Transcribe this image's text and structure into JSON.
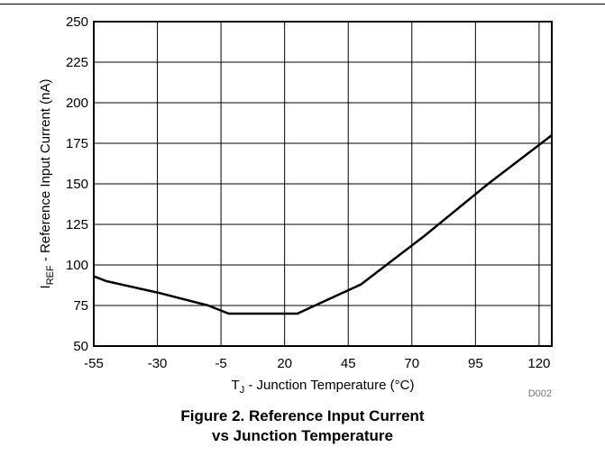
{
  "chart_data": {
    "type": "line",
    "xlabel": {
      "pre": "T",
      "sub": "J",
      "post": " - Junction Temperature (°C)"
    },
    "ylabel": {
      "pre": "I",
      "sub": "REF",
      "post": " - Reference Input Current (nA)"
    },
    "xlim": [
      -55,
      125
    ],
    "ylim": [
      50,
      250
    ],
    "x_ticks": [
      -55,
      -30,
      -5,
      20,
      45,
      70,
      95,
      120
    ],
    "y_ticks": [
      50,
      75,
      100,
      125,
      150,
      175,
      200,
      225,
      250
    ],
    "grid": true,
    "series": [
      {
        "x": [
          -55,
          -50,
          -30,
          -10,
          -2,
          25,
          50,
          75,
          100,
          125
        ],
        "y": [
          93,
          90,
          83,
          75,
          70,
          70,
          88,
          118,
          150,
          180
        ]
      }
    ]
  },
  "figure_code": "D002",
  "caption": {
    "line1": "Figure 2. Reference Input Current",
    "line2": "vs Junction Temperature"
  }
}
